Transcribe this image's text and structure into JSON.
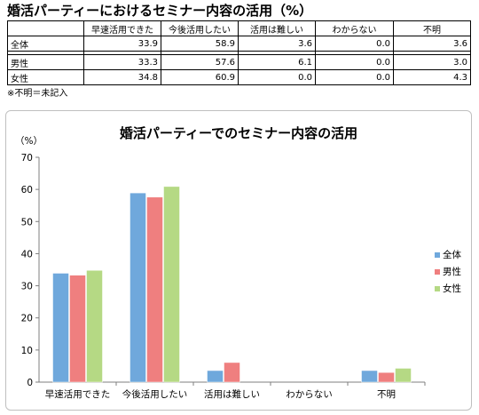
{
  "page": {
    "title": "婚活パーティーにおけるセミナー内容の活用（%）",
    "footnote": "※不明＝未記入"
  },
  "table": {
    "columns": [
      "",
      "早速活用できた",
      "今後活用したい",
      "活用は難しい",
      "わからない",
      "不明"
    ],
    "rows": [
      {
        "label": "全体",
        "values": [
          "33.9",
          "58.9",
          "3.6",
          "0.0",
          "3.6"
        ]
      },
      {
        "label": "男性",
        "values": [
          "33.3",
          "57.6",
          "6.1",
          "0.0",
          "3.0"
        ]
      },
      {
        "label": "女性",
        "values": [
          "34.8",
          "60.9",
          "0.0",
          "0.0",
          "4.3"
        ]
      }
    ]
  },
  "chart_data": {
    "type": "bar",
    "title": "婚活パーティーでのセミナー内容の活用",
    "ylabel": "（%）",
    "xlabel": "",
    "categories": [
      "早速活用できた",
      "今後活用したい",
      "活用は難しい",
      "わからない",
      "不明"
    ],
    "series": [
      {
        "name": "全体",
        "values": [
          33.9,
          58.9,
          3.6,
          0.0,
          3.6
        ],
        "color": "#6fa8dc"
      },
      {
        "name": "男性",
        "values": [
          33.3,
          57.6,
          6.1,
          0.0,
          3.0
        ],
        "color": "#ef7f7f"
      },
      {
        "name": "女性",
        "values": [
          34.8,
          60.9,
          0.0,
          0.0,
          4.3
        ],
        "color": "#b5d984"
      }
    ],
    "ylim": [
      0,
      70
    ],
    "yticks": [
      0,
      10,
      20,
      30,
      40,
      50,
      60,
      70
    ],
    "grid": false,
    "legend": "right"
  }
}
